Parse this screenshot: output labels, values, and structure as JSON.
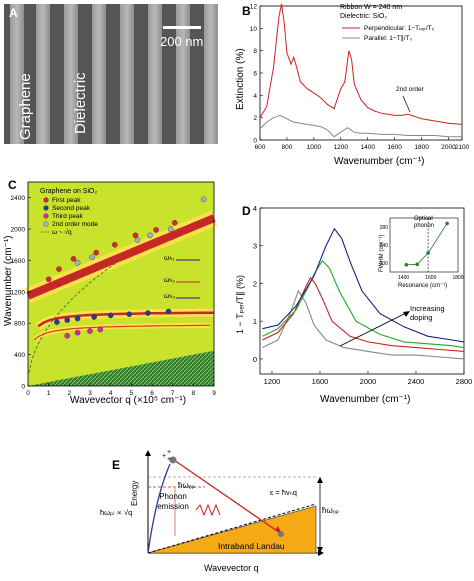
{
  "panels": {
    "a": {
      "label": "A",
      "scale_bar": "200 nm",
      "text_left": "Graphene",
      "text_right": "Dielectric"
    },
    "b": {
      "label": "B",
      "ylabel": "Extinction (%)",
      "xlabel": "Wavenumber (cm⁻¹)",
      "legend_title_1": "Ribbon W = 240 nm",
      "legend_title_2": "Dielectric: SiO₂",
      "legend_perp": "Perpendicular: 1−Tₚₑᵣ/T₀",
      "legend_par": "Parallel: 1−T∥/T₀",
      "annotation": "2nd order",
      "xticks": [
        "600",
        "800",
        "1000",
        "1200",
        "1400",
        "1600",
        "1800",
        "2000",
        "2100"
      ],
      "yticks": [
        "0",
        "2",
        "4",
        "6",
        "8",
        "10",
        "12"
      ]
    },
    "c": {
      "label": "C",
      "ylabel": "Wavenumber (cm⁻¹)",
      "xlabel": "Wavevector q (×10⁵ cm⁻¹)",
      "legend_title": "Graphene on SiO₂",
      "legend_items": [
        "First peak",
        "Second peak",
        "Third peak",
        "2nd order mode",
        "ω ~ √q"
      ],
      "branch_1": "ωₕ₁",
      "branch_2": "ωₕ₂",
      "branch_3": "ωₕ₃",
      "xticks": [
        "0",
        "1",
        "2",
        "3",
        "4",
        "5",
        "6",
        "7",
        "8",
        "9"
      ],
      "yticks": [
        "0",
        "400",
        "800",
        "1200",
        "1600",
        "2000",
        "2400"
      ]
    },
    "d": {
      "label": "D",
      "ylabel": "1 − Tₚₑᵣ/T∥ (%)",
      "xlabel": "Wavenumber (cm⁻¹)",
      "annotation": "Increasing doping",
      "inset_label": "Optical phonon",
      "inset_ylabel": "FWHM (cm⁻¹)",
      "inset_xlabel": "Resonance (cm⁻¹)",
      "inset_xticks": [
        "1400",
        "1600",
        "1800"
      ],
      "inset_yticks": [
        "200",
        "240",
        "280"
      ],
      "xticks": [
        "1200",
        "1600",
        "2000",
        "2400",
        "2800"
      ],
      "yticks": [
        "0",
        "1",
        "2",
        "3",
        "4"
      ]
    },
    "e": {
      "label": "E",
      "ylabel": "Energy",
      "xlabel": "Wavevector q",
      "phonon": "Phonon emission",
      "band": "Intraband Landau",
      "hw_op_1": "ħωₒₚ",
      "hw_op_2": "ħωₒₚ",
      "hw_pl": "ħωₚₗ ∝ √q",
      "epsilon": "ε = ħvₙq"
    }
  },
  "chart_data": [
    {
      "type": "line",
      "panel": "B",
      "xlabel": "Wavenumber (cm⁻¹)",
      "ylabel": "Extinction (%)",
      "xlim": [
        600,
        2100
      ],
      "ylim": [
        0,
        12
      ],
      "series": [
        {
          "name": "Perpendicular: 1−Tₚₑᵣ/T₀",
          "color": "#cc2222",
          "x": [
            600,
            650,
            700,
            740,
            760,
            780,
            800,
            830,
            850,
            870,
            900,
            950,
            1000,
            1050,
            1100,
            1150,
            1200,
            1230,
            1260,
            1280,
            1300,
            1350,
            1400,
            1450,
            1500,
            1550,
            1600,
            1650,
            1700,
            1750,
            1800,
            1850,
            1900,
            1950,
            2000,
            2100
          ],
          "y": [
            2.0,
            3.0,
            6.5,
            11.0,
            12.2,
            10.5,
            7.8,
            6.8,
            7.4,
            6.6,
            5.2,
            4.6,
            4.2,
            3.8,
            3.2,
            2.8,
            4.6,
            5.2,
            8.0,
            7.2,
            5.0,
            3.6,
            2.9,
            2.6,
            2.4,
            2.3,
            2.2,
            2.2,
            2.3,
            2.1,
            1.9,
            1.8,
            1.7,
            1.6,
            1.5,
            1.4
          ]
        },
        {
          "name": "Parallel: 1−T∥/T₀",
          "color": "#888888",
          "x": [
            600,
            650,
            700,
            750,
            800,
            850,
            900,
            950,
            1000,
            1050,
            1100,
            1150,
            1200,
            1250,
            1300,
            1350,
            1400,
            1500,
            1600,
            1700,
            1800,
            1900,
            2000,
            2100
          ],
          "y": [
            1.0,
            1.6,
            2.0,
            2.2,
            1.9,
            1.6,
            1.5,
            1.4,
            1.3,
            1.2,
            0.9,
            0.3,
            0.7,
            1.1,
            0.7,
            0.6,
            0.6,
            0.5,
            0.5,
            0.4,
            0.4,
            0.4,
            0.3,
            0.3
          ]
        }
      ]
    },
    {
      "type": "scatter",
      "panel": "C",
      "xlabel": "Wavevector q (×10⁵ cm⁻¹)",
      "ylabel": "Wavenumber (cm⁻¹)",
      "xlim": [
        0,
        9
      ],
      "ylim": [
        0,
        2600
      ],
      "series": [
        {
          "name": "First peak",
          "color": "#e0242b",
          "x": [
            1.0,
            1.5,
            2.2,
            3.3,
            4.2,
            5.2,
            6.2,
            7.1
          ],
          "y": [
            1360,
            1490,
            1620,
            1700,
            1800,
            1920,
            1990,
            2080
          ]
        },
        {
          "name": "Second peak",
          "color": "#2a3a9a",
          "x": [
            1.4,
            1.9,
            2.4,
            3.2,
            4.0,
            4.9,
            5.8,
            6.8
          ],
          "y": [
            815,
            840,
            860,
            880,
            900,
            915,
            930,
            950
          ]
        },
        {
          "name": "Third peak",
          "color": "#d52aa0",
          "x": [
            1.9,
            2.4,
            3.0,
            3.5
          ],
          "y": [
            640,
            680,
            700,
            720
          ]
        },
        {
          "name": "2nd order mode",
          "color": "#9fb0c8",
          "x": [
            2.4,
            3.1,
            5.3,
            5.9,
            6.9,
            8.5
          ],
          "y": [
            1570,
            1640,
            1860,
            1920,
            2000,
            2380
          ]
        }
      ]
    },
    {
      "type": "line",
      "panel": "D",
      "xlabel": "Wavenumber (cm⁻¹)",
      "ylabel": "1 − Tₚₑᵣ/T∥ (%)",
      "xlim": [
        1100,
        2800
      ],
      "ylim": [
        -0.4,
        4
      ],
      "series": [
        {
          "color": "#888888",
          "x": [
            1120,
            1250,
            1350,
            1420,
            1480,
            1550,
            1650,
            1800,
            2000,
            2200,
            2400,
            2600,
            2800
          ],
          "y": [
            0.3,
            0.5,
            1.2,
            1.8,
            1.5,
            0.9,
            0.5,
            0.3,
            0.2,
            0.1,
            0.1,
            0.05,
            0.0
          ]
        },
        {
          "color": "#cc2222",
          "x": [
            1120,
            1250,
            1380,
            1480,
            1520,
            1560,
            1620,
            1700,
            1850,
            2000,
            2200,
            2400,
            2600,
            2800
          ],
          "y": [
            0.5,
            0.7,
            1.2,
            1.9,
            2.15,
            2.0,
            1.6,
            1.0,
            0.6,
            0.45,
            0.35,
            0.3,
            0.25,
            0.2
          ]
        },
        {
          "color": "#22aa22",
          "x": [
            1120,
            1250,
            1400,
            1500,
            1560,
            1620,
            1680,
            1760,
            1900,
            2100,
            2300,
            2500,
            2700,
            2800
          ],
          "y": [
            0.6,
            0.8,
            1.3,
            1.9,
            2.3,
            2.6,
            2.4,
            1.8,
            1.0,
            0.65,
            0.45,
            0.4,
            0.35,
            0.3
          ]
        },
        {
          "color": "#1a237e",
          "x": [
            1120,
            1250,
            1400,
            1550,
            1650,
            1720,
            1780,
            1860,
            1950,
            2100,
            2300,
            2500,
            2700,
            2800
          ],
          "y": [
            0.8,
            0.9,
            1.4,
            2.2,
            3.0,
            3.45,
            3.2,
            2.5,
            1.8,
            1.2,
            0.85,
            0.6,
            0.5,
            0.45
          ]
        }
      ],
      "inset": {
        "xlabel": "Resonance (cm⁻¹)",
        "ylabel": "FWHM (cm⁻¹)",
        "x": [
          1420,
          1500,
          1580,
          1720
        ],
        "y": [
          196,
          197,
          222,
          288
        ]
      }
    }
  ]
}
